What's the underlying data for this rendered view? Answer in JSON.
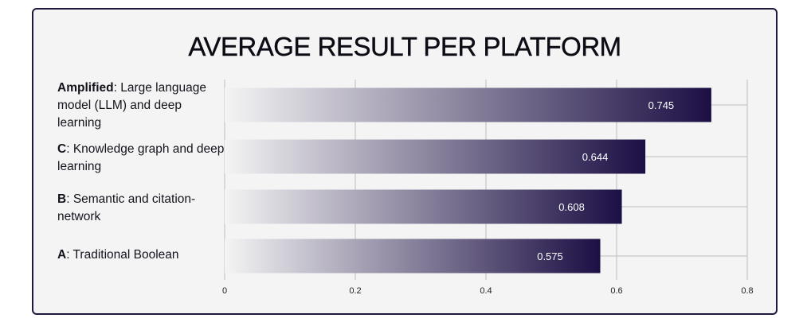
{
  "chart_data": {
    "type": "bar",
    "orientation": "horizontal",
    "title": "AVERAGE RESULT PER PLATFORM",
    "categories": [
      {
        "bold": "Amplified",
        "rest": ": Large language model (LLM) and deep learning"
      },
      {
        "bold": "C",
        "rest": ": Knowledge graph and deep learning"
      },
      {
        "bold": "B",
        "rest": ": Semantic and citation-network"
      },
      {
        "bold": "A",
        "rest": ": Traditional Boolean"
      }
    ],
    "values": [
      0.745,
      0.644,
      0.608,
      0.575
    ],
    "value_labels": [
      "0.745",
      "0.644",
      "0.608",
      "0.575"
    ],
    "xlim": [
      0,
      0.8
    ],
    "xticks": [
      "0",
      "0.2",
      "0.4",
      "0.6",
      "0.8"
    ],
    "grid": true,
    "colors": {
      "bar_end": "#1c0f44",
      "bar_start": "#f4f4f4",
      "grid": "#bdbdbd",
      "border": "#1f1a3d"
    }
  }
}
